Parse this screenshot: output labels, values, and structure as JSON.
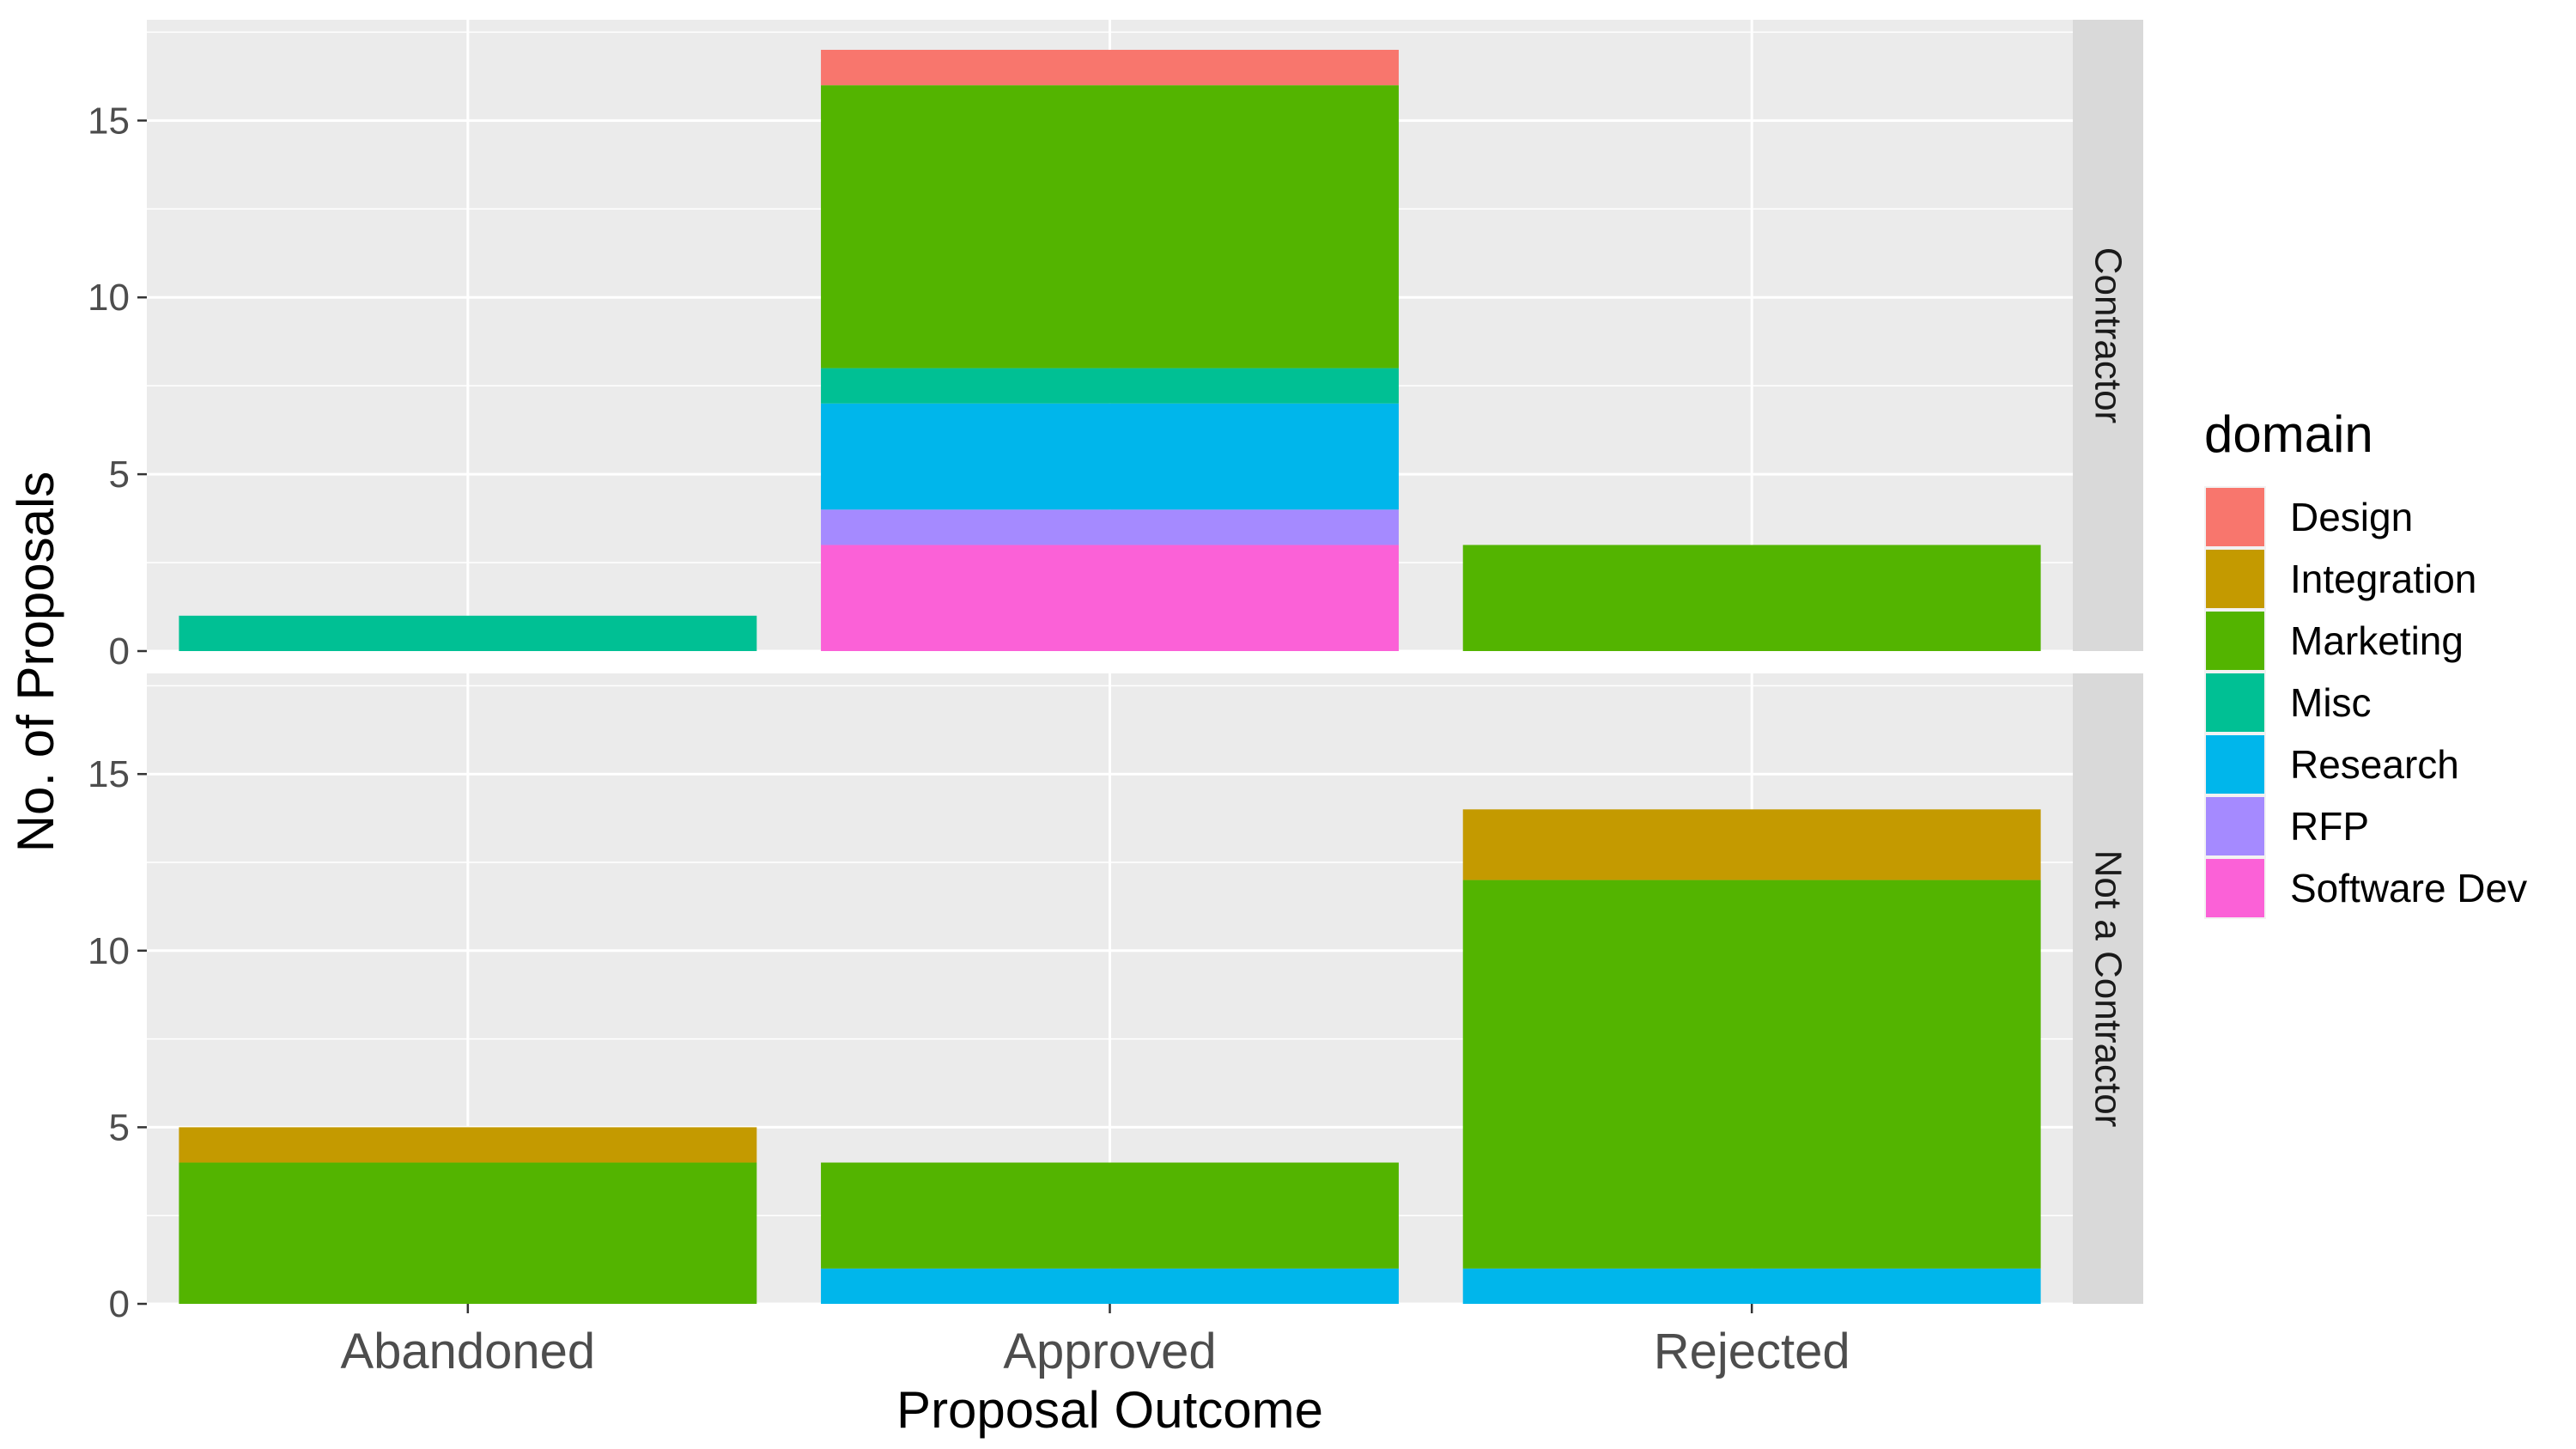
{
  "chart_data": {
    "type": "bar",
    "stacked": true,
    "facets": [
      "Contractor",
      "Not a Contractor"
    ],
    "categories": [
      "Abandoned",
      "Approved",
      "Rejected"
    ],
    "xlabel": "Proposal Outcome",
    "ylabel": "No. of Proposals",
    "ylim": [
      0,
      17.85
    ],
    "yticks": [
      0,
      5,
      10,
      15
    ],
    "grid": true,
    "legend": {
      "title": "domain",
      "position": "right",
      "items": [
        {
          "name": "Design",
          "color": "#F8766D"
        },
        {
          "name": "Integration",
          "color": "#C49A00"
        },
        {
          "name": "Marketing",
          "color": "#53B400"
        },
        {
          "name": "Misc",
          "color": "#00C094"
        },
        {
          "name": "Research",
          "color": "#00B6EB"
        },
        {
          "name": "RFP",
          "color": "#A58AFF"
        },
        {
          "name": "Software Dev",
          "color": "#FB61D7"
        }
      ]
    },
    "panels": [
      {
        "facet": "Contractor",
        "series": [
          {
            "name": "Design",
            "values": [
              0,
              1,
              0
            ]
          },
          {
            "name": "Integration",
            "values": [
              0,
              0,
              0
            ]
          },
          {
            "name": "Marketing",
            "values": [
              0,
              8,
              3
            ]
          },
          {
            "name": "Misc",
            "values": [
              1,
              1,
              0
            ]
          },
          {
            "name": "Research",
            "values": [
              0,
              3,
              0
            ]
          },
          {
            "name": "RFP",
            "values": [
              0,
              1,
              0
            ]
          },
          {
            "name": "Software Dev",
            "values": [
              0,
              3,
              0
            ]
          }
        ]
      },
      {
        "facet": "Not a Contractor",
        "series": [
          {
            "name": "Design",
            "values": [
              0,
              0,
              0
            ]
          },
          {
            "name": "Integration",
            "values": [
              1,
              0,
              2
            ]
          },
          {
            "name": "Marketing",
            "values": [
              4,
              3,
              11
            ]
          },
          {
            "name": "Misc",
            "values": [
              0,
              0,
              0
            ]
          },
          {
            "name": "Research",
            "values": [
              0,
              1,
              1
            ]
          },
          {
            "name": "RFP",
            "values": [
              0,
              0,
              0
            ]
          },
          {
            "name": "Software Dev",
            "values": [
              0,
              0,
              0
            ]
          }
        ]
      }
    ]
  }
}
